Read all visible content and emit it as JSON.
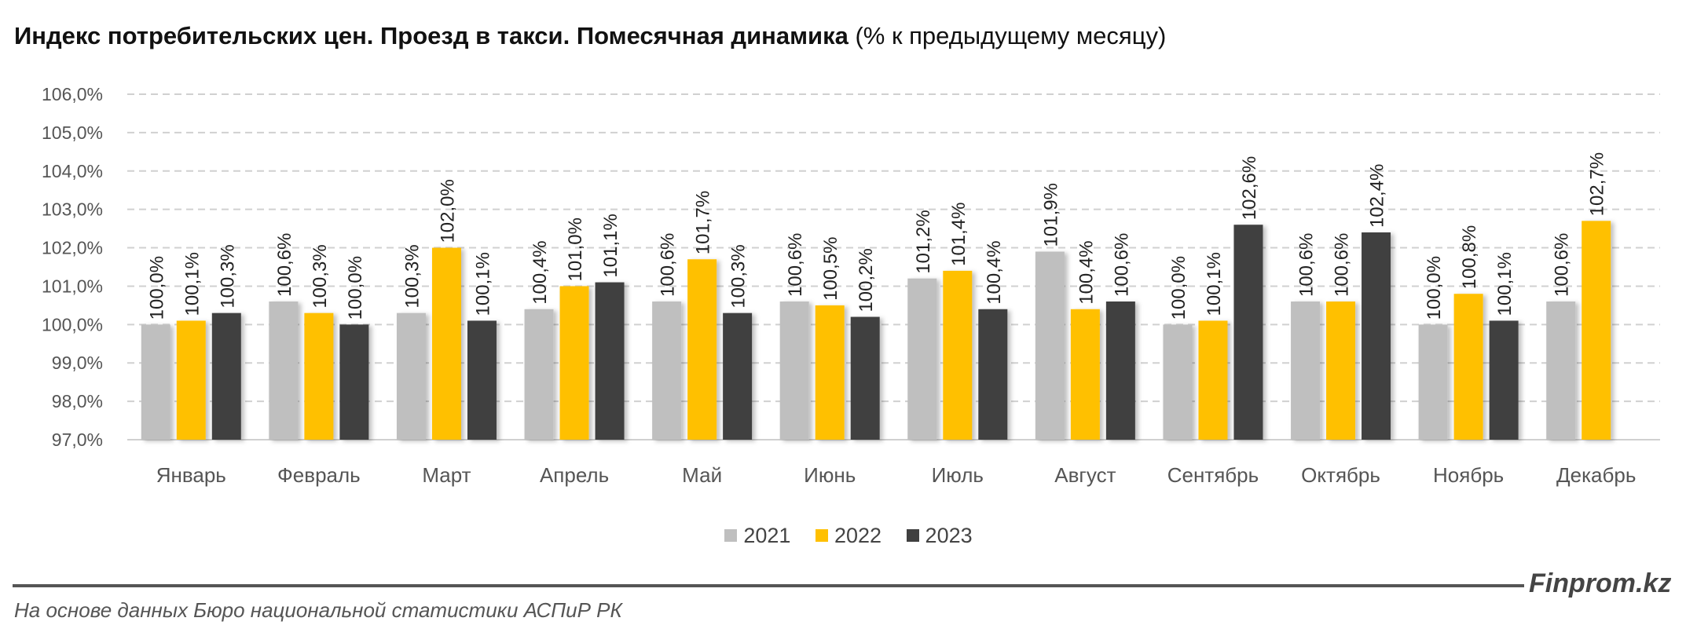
{
  "chart_data": {
    "type": "bar",
    "title": "Индекс потребительских цен. Проезд в такси. Помесячная динамика",
    "subtitle": "(% к предыдущему месяцу)",
    "categories": [
      "Январь",
      "Февраль",
      "Март",
      "Апрель",
      "Май",
      "Июнь",
      "Июль",
      "Август",
      "Сентябрь",
      "Октябрь",
      "Ноябрь",
      "Декабрь"
    ],
    "series": [
      {
        "name": "2021",
        "color": "#bfbfbf",
        "values": [
          100.0,
          100.6,
          100.3,
          100.4,
          100.6,
          100.6,
          101.2,
          101.9,
          100.0,
          100.6,
          100.0,
          100.6
        ],
        "labels": [
          "100,0%",
          "100,6%",
          "100,3%",
          "100,4%",
          "100,6%",
          "100,6%",
          "101,2%",
          "101,9%",
          "100,0%",
          "100,6%",
          "100,0%",
          "100,6%"
        ]
      },
      {
        "name": "2022",
        "color": "#ffc000",
        "values": [
          100.1,
          100.3,
          102.0,
          101.0,
          101.7,
          100.5,
          101.4,
          100.4,
          100.1,
          100.6,
          100.8,
          102.7
        ],
        "labels": [
          "100,1%",
          "100,3%",
          "102,0%",
          "101,0%",
          "101,7%",
          "100,5%",
          "101,4%",
          "100,4%",
          "100,1%",
          "100,6%",
          "100,8%",
          "102,7%"
        ]
      },
      {
        "name": "2023",
        "color": "#404040",
        "values": [
          100.3,
          100.0,
          100.1,
          101.1,
          100.3,
          100.2,
          100.4,
          100.6,
          102.6,
          102.4,
          100.1,
          null
        ],
        "labels": [
          "100,3%",
          "100,0%",
          "100,1%",
          "101,1%",
          "100,3%",
          "100,2%",
          "100,4%",
          "100,6%",
          "102,6%",
          "102,4%",
          "100,1%",
          null
        ]
      }
    ],
    "ylim": [
      97,
      106
    ],
    "yticks": [
      "97,0%",
      "98,0%",
      "99,0%",
      "100,0%",
      "101,0%",
      "102,0%",
      "103,0%",
      "104,0%",
      "105,0%",
      "106,0%"
    ],
    "grid": true,
    "legend": "bottom",
    "xlabel": "",
    "ylabel": ""
  },
  "footer": {
    "brand": "Finprom.kz",
    "source": "На основе данных Бюро национальной статистики АСПиР РК"
  }
}
